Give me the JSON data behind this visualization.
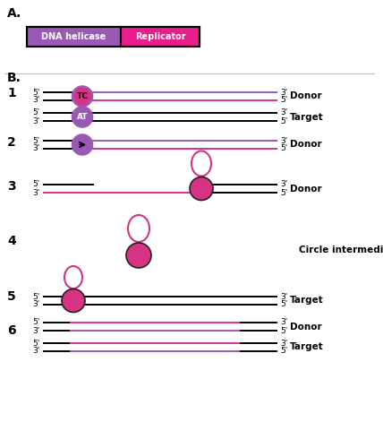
{
  "fig_width": 4.28,
  "fig_height": 5.0,
  "dpi": 100,
  "bg_color": "#ffffff",
  "panel_a_label": "A.",
  "panel_b_label": "B.",
  "helicase_color": "#9b59b6",
  "replicator_color": "#e91e8c",
  "helicase_label": "DNA helicase",
  "replicator_label": "Replicator",
  "pink_line_color": "#d63384",
  "purple_line_color": "#9b59b6",
  "black_line_color": "#000000",
  "donor_label": "Donor",
  "target_label": "Target",
  "circle_intermediate_label": "Circle intermediate",
  "tc_label": "TC",
  "at_label": "AT",
  "sep_line_color": "#bbbbbb",
  "dark_edge_color": "#222222"
}
